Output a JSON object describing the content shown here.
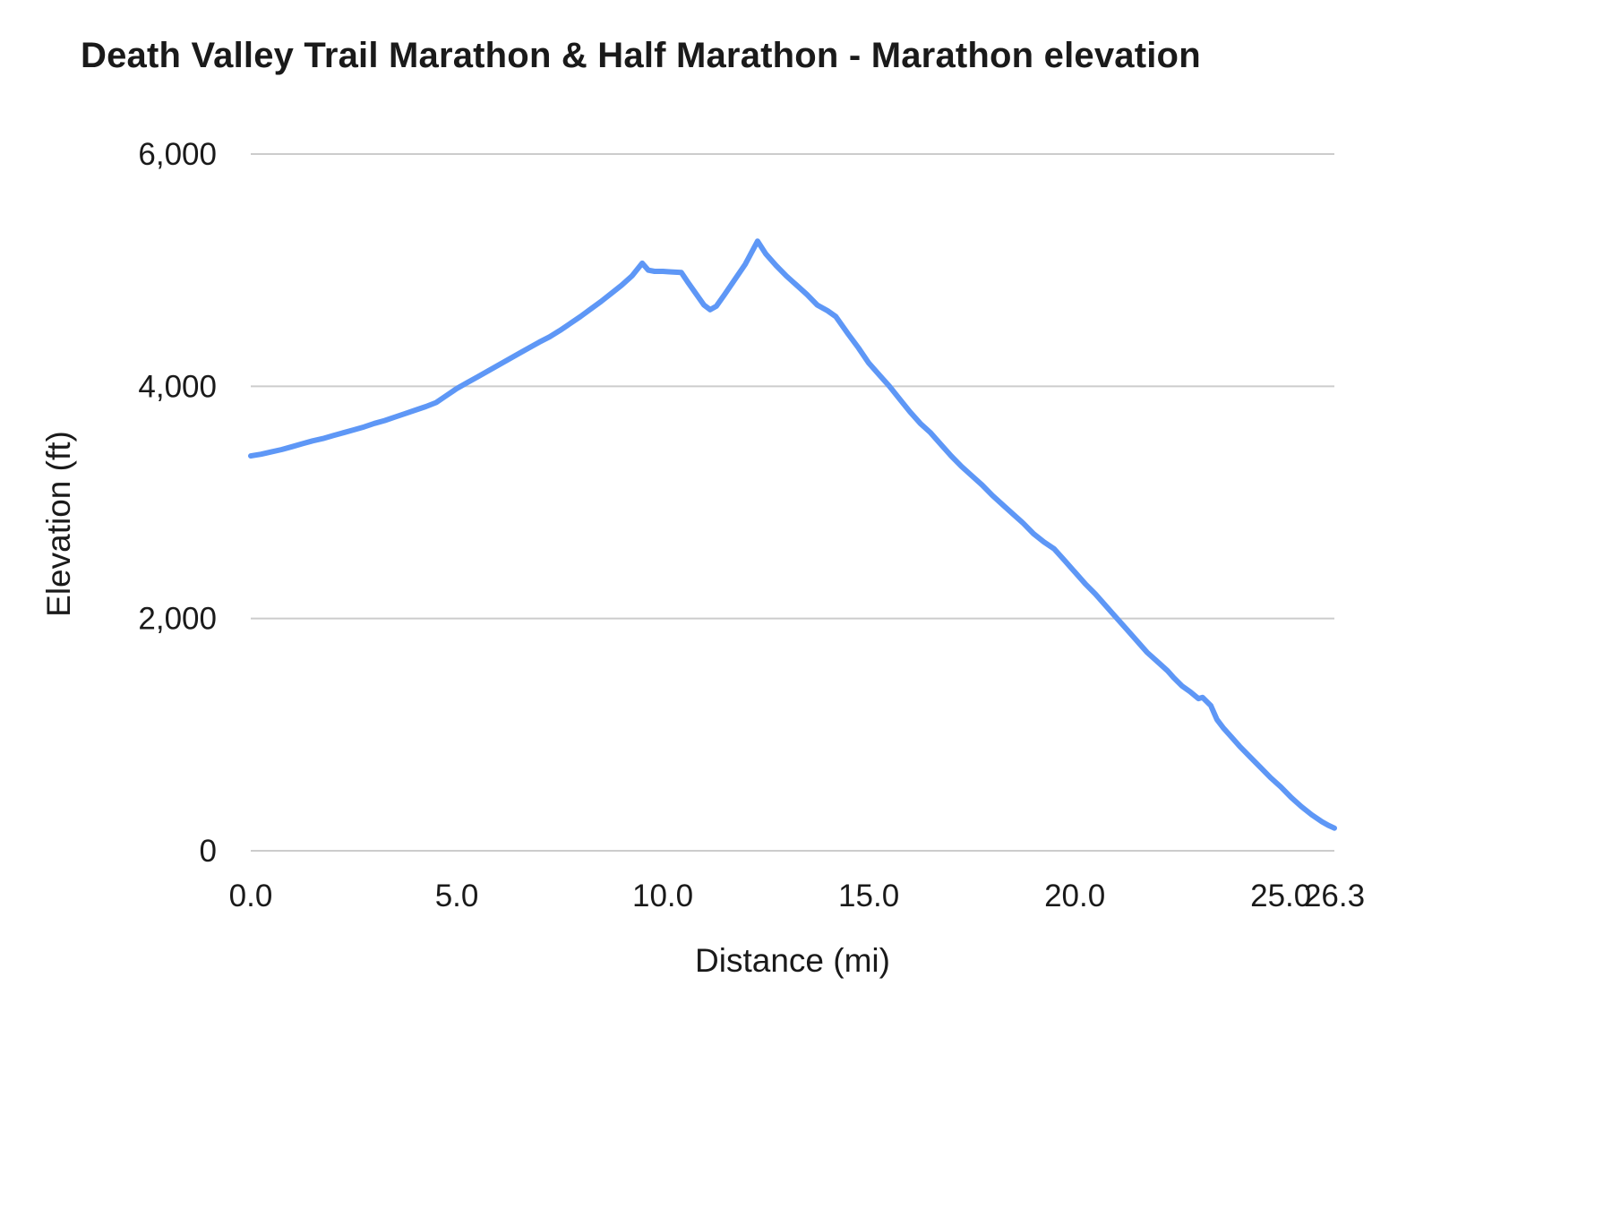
{
  "chart_data": {
    "type": "line",
    "title": "Death Valley Trail Marathon & Half Marathon - Marathon elevation",
    "xlabel": "Distance (mi)",
    "ylabel": "Elevation (ft)",
    "xlim": [
      0,
      26.3
    ],
    "ylim": [
      0,
      6000
    ],
    "x_ticks": [
      0.0,
      5.0,
      10.0,
      15.0,
      20.0,
      25.0,
      26.3
    ],
    "x_tick_labels": [
      "0.0",
      "5.0",
      "10.0",
      "15.0",
      "20.0",
      "25.0",
      "26.3"
    ],
    "y_ticks": [
      0,
      2000,
      4000,
      6000
    ],
    "y_tick_labels": [
      "0",
      "2,000",
      "4,000",
      "6,000"
    ],
    "grid": true,
    "legend_position": "none",
    "line_color": "#5e97f6",
    "grid_color": "#cccccc",
    "series": [
      {
        "name": "Marathon elevation",
        "x": [
          0,
          0.25,
          0.5,
          0.75,
          1,
          1.25,
          1.5,
          1.75,
          2,
          2.25,
          2.5,
          2.75,
          3,
          3.25,
          3.5,
          3.75,
          4,
          4.25,
          4.5,
          4.75,
          5,
          5.25,
          5.5,
          5.75,
          6,
          6.25,
          6.5,
          6.75,
          7,
          7.25,
          7.5,
          7.75,
          8,
          8.25,
          8.5,
          8.75,
          9,
          9.25,
          9.5,
          9.65,
          9.8,
          10,
          10.2,
          10.45,
          10.6,
          10.8,
          11,
          11.15,
          11.3,
          11.5,
          11.75,
          12,
          12.3,
          12.5,
          12.75,
          13,
          13.25,
          13.5,
          13.75,
          14,
          14.2,
          14.5,
          14.75,
          15,
          15.25,
          15.5,
          15.75,
          16,
          16.25,
          16.5,
          16.75,
          17,
          17.25,
          17.5,
          17.75,
          18,
          18.25,
          18.5,
          18.75,
          19,
          19.25,
          19.5,
          19.75,
          20,
          20.25,
          20.5,
          20.75,
          21,
          21.25,
          21.5,
          21.75,
          22,
          22.25,
          22.4,
          22.6,
          22.8,
          23,
          23.1,
          23.3,
          23.45,
          23.6,
          23.8,
          24,
          24.25,
          24.5,
          24.75,
          25,
          25.25,
          25.5,
          25.75,
          26,
          26.15,
          26.3
        ],
        "y": [
          3400,
          3415,
          3435,
          3455,
          3480,
          3505,
          3530,
          3550,
          3575,
          3600,
          3625,
          3650,
          3680,
          3705,
          3735,
          3765,
          3795,
          3825,
          3860,
          3920,
          3980,
          4030,
          4080,
          4130,
          4180,
          4230,
          4280,
          4330,
          4380,
          4425,
          4480,
          4540,
          4600,
          4665,
          4730,
          4800,
          4870,
          4950,
          5060,
          5000,
          4990,
          4990,
          4985,
          4980,
          4900,
          4800,
          4700,
          4660,
          4690,
          4790,
          4920,
          5050,
          5250,
          5140,
          5040,
          4950,
          4870,
          4790,
          4700,
          4650,
          4600,
          4450,
          4330,
          4200,
          4100,
          4000,
          3890,
          3780,
          3680,
          3600,
          3500,
          3400,
          3310,
          3230,
          3150,
          3060,
          2980,
          2900,
          2820,
          2730,
          2660,
          2600,
          2500,
          2400,
          2300,
          2210,
          2110,
          2010,
          1910,
          1810,
          1710,
          1630,
          1550,
          1490,
          1420,
          1370,
          1310,
          1320,
          1250,
          1130,
          1060,
          980,
          900,
          810,
          720,
          630,
          550,
          460,
          380,
          310,
          250,
          220,
          195
        ]
      }
    ]
  }
}
